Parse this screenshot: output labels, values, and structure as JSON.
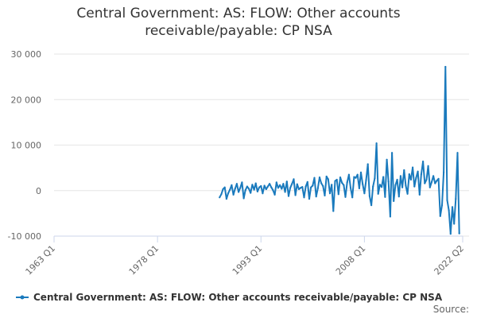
{
  "chart_data": {
    "type": "line",
    "title": "Central Government: AS: FLOW: Other accounts receivable/payable: CP NSA",
    "title_lines": [
      "Central Government: AS: FLOW: Other accounts",
      "receivable/payable: CP NSA"
    ],
    "xlabel": "",
    "ylabel": "",
    "x_ticks": [
      "1963 Q1",
      "1978 Q1",
      "1993 Q1",
      "2008 Q1",
      "2022 Q2"
    ],
    "y_ticks": [
      "30 000",
      "20 000",
      "10 000",
      "0",
      "-10 000"
    ],
    "ylim": [
      -10000,
      30000
    ],
    "grid": "horizontal",
    "legend_position": "bottom",
    "source_label": "Source:",
    "series": [
      {
        "name": "Central Government: AS: FLOW: Other accounts receivable/payable: CP NSA",
        "color": "#1a7abd",
        "start": "1987 Q1",
        "values": [
          -1500,
          -800,
          300,
          700,
          -1800,
          -600,
          200,
          1200,
          -900,
          400,
          1500,
          -300,
          600,
          1800,
          -1700,
          100,
          900,
          400,
          -500,
          1300,
          200,
          1600,
          -200,
          700,
          1000,
          -600,
          1100,
          300,
          900,
          1500,
          700,
          100,
          -900,
          1800,
          600,
          1200,
          400,
          1500,
          -300,
          2000,
          -1200,
          600,
          1500,
          2500,
          -1000,
          1400,
          300,
          600,
          800,
          -1500,
          900,
          1900,
          -1800,
          700,
          1100,
          2800,
          -1300,
          500,
          2900,
          1600,
          1000,
          -1100,
          3100,
          2500,
          -600,
          1300,
          -4500,
          2100,
          2400,
          -800,
          2900,
          1700,
          1200,
          -1400,
          1800,
          3500,
          600,
          -1500,
          3000,
          2800,
          3500,
          500,
          4000,
          1400,
          -600,
          2300,
          5800,
          -1200,
          -3200,
          900,
          2700,
          10400,
          -700,
          1300,
          800,
          3000,
          -1400,
          6800,
          2000,
          -5700,
          8300,
          -2300,
          1200,
          2400,
          -1300,
          3200,
          700,
          4500,
          1100,
          -700,
          3600,
          2400,
          5100,
          900,
          2800,
          4200,
          -900,
          3600,
          6400,
          1600,
          2400,
          5400,
          700,
          1900,
          3200,
          1600,
          2200,
          2600,
          -5600,
          -3200,
          4000,
          27200,
          -2100,
          -4300,
          -9500,
          -3600,
          -7300,
          -1800,
          8300,
          -9400
        ]
      }
    ]
  }
}
